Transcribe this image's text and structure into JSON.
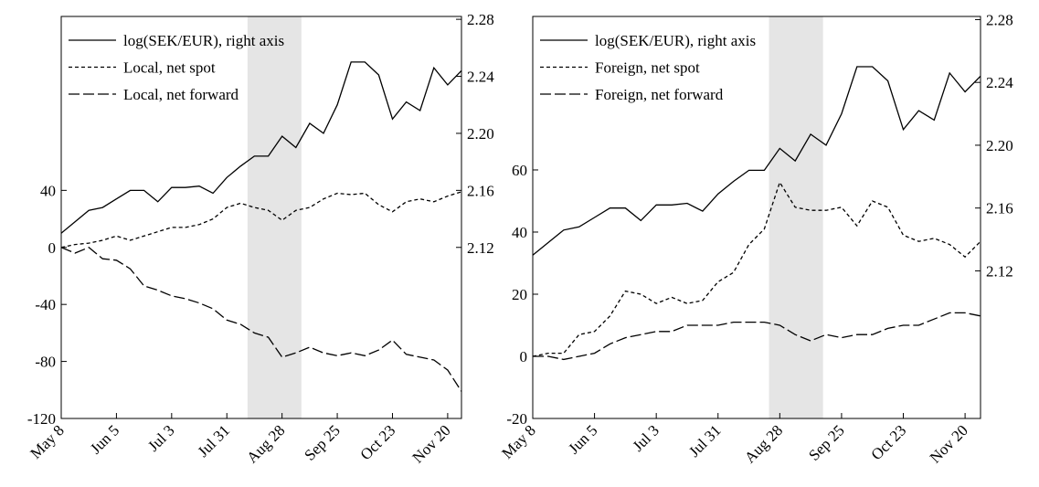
{
  "chart_data": [
    {
      "type": "line",
      "categories": [
        "May 8",
        null,
        null,
        null,
        "Jun 5",
        null,
        null,
        null,
        "Jul 3",
        null,
        null,
        null,
        "Jul 31",
        null,
        null,
        null,
        "Aug 28",
        null,
        null,
        null,
        "Sep 25",
        null,
        null,
        null,
        "Oct 23",
        null,
        null,
        null,
        "Nov 20",
        null
      ],
      "series": [
        {
          "name": "log(SEK/EUR), right axis",
          "color": "#000000",
          "line_style": "solid",
          "axis": "y2",
          "values": [
            2.13,
            2.138,
            2.146,
            2.148,
            2.154,
            2.16,
            2.16,
            2.152,
            2.162,
            2.162,
            2.163,
            2.158,
            2.169,
            2.177,
            2.184,
            2.184,
            2.198,
            2.19,
            2.207,
            2.2,
            2.22,
            2.25,
            2.25,
            2.241,
            2.21,
            2.222,
            2.216,
            2.246,
            2.234,
            2.244
          ]
        },
        {
          "name": "Local, net spot",
          "color": "#000000",
          "line_style": "short-dash",
          "values": [
            0,
            2,
            3,
            5,
            8,
            5,
            8,
            11,
            14,
            14,
            16,
            20,
            28,
            31,
            28,
            26,
            19,
            26,
            28,
            34,
            38,
            37,
            38,
            30,
            25,
            32,
            34,
            32,
            36,
            39
          ]
        },
        {
          "name": "Local, net forward",
          "color": "#000000",
          "line_style": "long-dash",
          "values": [
            0,
            -4,
            0,
            -8,
            -9,
            -15,
            -27,
            -30,
            -34,
            -36,
            -39,
            -43,
            -51,
            -54,
            -60,
            -63,
            -77,
            -74,
            -70,
            -74,
            -76,
            -74,
            -76,
            -72,
            -65,
            -75,
            -77,
            -79,
            -86,
            -101
          ]
        }
      ],
      "ylim": [
        -120,
        162
      ],
      "yticks": [
        -120,
        -80,
        -40,
        0,
        40
      ],
      "y2lim": [
        2.0,
        2.282
      ],
      "y2ticks": [
        2.12,
        2.16,
        {
          "value": 2.2,
          "label": "2.20"
        },
        2.24,
        2.28
      ],
      "shade": [
        13.5,
        17.4
      ],
      "shade_color": "#e5e5e5",
      "legend": "top-left",
      "grid": false
    },
    {
      "type": "line",
      "categories": [
        "May 8",
        null,
        null,
        null,
        "Jun 5",
        null,
        null,
        null,
        "Jul 3",
        null,
        null,
        null,
        "Jul 31",
        null,
        null,
        null,
        "Aug 28",
        null,
        null,
        null,
        "Sep 25",
        null,
        null,
        null,
        "Oct 23",
        null,
        null,
        null,
        "Nov 20",
        null
      ],
      "series": [
        {
          "name": "log(SEK/EUR), right axis",
          "color": "#000000",
          "line_style": "solid",
          "axis": "y2",
          "values": [
            2.13,
            2.138,
            2.146,
            2.148,
            2.154,
            2.16,
            2.16,
            2.152,
            2.162,
            2.162,
            2.163,
            2.158,
            2.169,
            2.177,
            2.184,
            2.184,
            2.198,
            2.19,
            2.207,
            2.2,
            2.22,
            2.25,
            2.25,
            2.241,
            2.21,
            2.222,
            2.216,
            2.246,
            2.234,
            2.244
          ]
        },
        {
          "name": "Foreign, net spot",
          "color": "#000000",
          "line_style": "short-dash",
          "values": [
            0,
            1,
            1,
            7,
            8,
            13,
            21,
            20,
            17,
            19,
            17,
            18,
            24,
            27,
            36,
            41,
            56,
            48,
            47,
            47,
            48,
            42,
            50,
            48,
            39,
            37,
            38,
            36,
            32,
            37
          ]
        },
        {
          "name": "Foreign, net forward",
          "color": "#000000",
          "line_style": "long-dash",
          "values": [
            0,
            0,
            -1,
            0,
            1,
            4,
            6,
            7,
            8,
            8,
            10,
            10,
            10,
            11,
            11,
            11,
            10,
            7,
            5,
            7,
            6,
            7,
            7,
            9,
            10,
            10,
            12,
            14,
            14,
            13
          ]
        }
      ],
      "ylim": [
        -20,
        109.4
      ],
      "yticks": [
        -20,
        0,
        20,
        40,
        60
      ],
      "y2lim": [
        2.026,
        2.282
      ],
      "y2ticks": [
        2.12,
        2.16,
        {
          "value": 2.2,
          "label": "2.20"
        },
        2.24,
        2.28
      ],
      "shade": [
        15.3,
        18.8
      ],
      "shade_color": "#e5e5e5",
      "legend": "top-left",
      "grid": false
    }
  ]
}
